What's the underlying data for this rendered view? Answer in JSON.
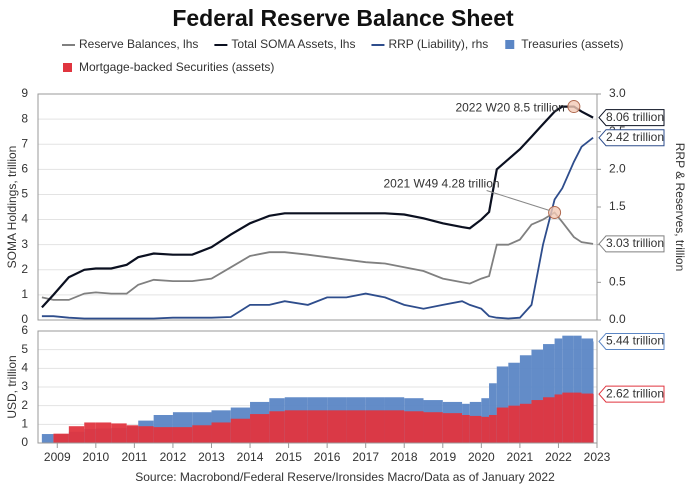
{
  "title": "Federal Reserve Balance Sheet",
  "source": "Source: Macrobond/Federal Reserve/Ironsides Macro/Data as of January 2022",
  "chart_data": [
    {
      "type": "line",
      "ylabel": "SOMA Holdings, trillion",
      "y2label": "RRP & Reserves, trillion",
      "xlim": [
        2008.5,
        2023
      ],
      "ylim": [
        0,
        9
      ],
      "yticks": [
        0,
        1,
        2,
        3,
        4,
        5,
        6,
        7,
        8,
        9
      ],
      "y2lim": [
        0,
        3.0
      ],
      "y2ticks": [
        {
          "value": 0,
          "label": "0.0"
        },
        0.5,
        {
          "value": 1,
          "label": "1.0"
        },
        1.5,
        {
          "value": 2,
          "label": "2.0"
        },
        2.5,
        {
          "value": 3,
          "label": "3.0"
        }
      ],
      "grid": true,
      "x": [
        2008.6,
        2008.9,
        2009.3,
        2009.7,
        2010.0,
        2010.4,
        2010.8,
        2011.1,
        2011.5,
        2012.0,
        2012.5,
        2013.0,
        2013.5,
        2014.0,
        2014.5,
        2014.9,
        2015.5,
        2016.0,
        2016.5,
        2017.0,
        2017.5,
        2018.0,
        2018.5,
        2019.0,
        2019.5,
        2019.7,
        2020.0,
        2020.2,
        2020.4,
        2020.7,
        2021.0,
        2021.3,
        2021.6,
        2021.9,
        2022.1,
        2022.4,
        2022.6,
        2022.9
      ],
      "series": [
        {
          "name": "Reserve Balances, lhs",
          "color": "#808080",
          "values": [
            0.9,
            0.8,
            0.8,
            1.05,
            1.1,
            1.05,
            1.05,
            1.4,
            1.6,
            1.55,
            1.55,
            1.65,
            2.1,
            2.55,
            2.7,
            2.7,
            2.6,
            2.5,
            2.4,
            2.3,
            2.25,
            2.1,
            1.95,
            1.65,
            1.5,
            1.45,
            1.65,
            1.75,
            3.0,
            3.0,
            3.2,
            3.8,
            4.0,
            4.28,
            3.9,
            3.3,
            3.1,
            3.03
          ],
          "end_label": "3.03 trillion"
        },
        {
          "name": "Total SOMA Assets, lhs",
          "color": "#0b1020",
          "values": [
            0.5,
            1.0,
            1.7,
            2.0,
            2.05,
            2.05,
            2.2,
            2.5,
            2.65,
            2.6,
            2.6,
            2.9,
            3.4,
            3.85,
            4.15,
            4.25,
            4.25,
            4.25,
            4.25,
            4.25,
            4.25,
            4.2,
            4.05,
            3.85,
            3.7,
            3.65,
            4.0,
            4.3,
            6.0,
            6.4,
            6.8,
            7.3,
            7.8,
            8.3,
            8.5,
            8.5,
            8.3,
            8.06
          ],
          "end_label": "8.06 trillion"
        },
        {
          "name": "RRP (Liability), rhs",
          "color": "#2e4d8c",
          "axis": "y2",
          "values": [
            0.05,
            0.05,
            0.03,
            0.02,
            0.02,
            0.02,
            0.02,
            0.02,
            0.02,
            0.03,
            0.03,
            0.03,
            0.04,
            0.2,
            0.2,
            0.25,
            0.2,
            0.3,
            0.3,
            0.35,
            0.3,
            0.2,
            0.15,
            0.2,
            0.25,
            0.2,
            0.15,
            0.05,
            0.03,
            0.02,
            0.03,
            0.2,
            1.0,
            1.6,
            1.75,
            2.1,
            2.3,
            2.42
          ],
          "end_label": "2.42 trillion"
        }
      ],
      "annotations": [
        {
          "text": "2022 W20 8.5 trillion",
          "x": 2022.4,
          "y": 8.5
        },
        {
          "text": "2021 W49 4.28 trillion",
          "x": 2021.9,
          "y": 4.28
        }
      ]
    },
    {
      "type": "bar",
      "ylabel": "USD, trillion",
      "xlim": [
        2008.5,
        2023
      ],
      "xticks": [
        2009,
        2010,
        2011,
        2012,
        2013,
        2014,
        2015,
        2016,
        2017,
        2018,
        2019,
        2020,
        2021,
        2022,
        2023
      ],
      "ylim": [
        0,
        6
      ],
      "yticks": [
        0,
        1,
        2,
        3,
        4,
        5,
        6
      ],
      "grid": true,
      "x": [
        2008.6,
        2008.9,
        2009.3,
        2009.7,
        2010.0,
        2010.4,
        2010.8,
        2011.1,
        2011.5,
        2012.0,
        2012.5,
        2013.0,
        2013.5,
        2014.0,
        2014.5,
        2014.9,
        2015.5,
        2016.0,
        2016.5,
        2017.0,
        2017.5,
        2018.0,
        2018.5,
        2019.0,
        2019.5,
        2019.7,
        2020.0,
        2020.2,
        2020.4,
        2020.7,
        2021.0,
        2021.3,
        2021.6,
        2021.9,
        2022.1,
        2022.4,
        2022.6,
        2022.9
      ],
      "series": [
        {
          "name": "Treasuries (assets)",
          "color": "#5b86c5",
          "values": [
            0.48,
            0.48,
            0.6,
            0.75,
            0.78,
            0.8,
            0.9,
            1.2,
            1.5,
            1.65,
            1.65,
            1.75,
            1.9,
            2.2,
            2.4,
            2.45,
            2.45,
            2.45,
            2.45,
            2.45,
            2.45,
            2.4,
            2.3,
            2.2,
            2.1,
            2.2,
            2.4,
            3.2,
            4.1,
            4.3,
            4.7,
            5.0,
            5.3,
            5.6,
            5.75,
            5.75,
            5.6,
            5.44
          ],
          "end_label": "5.44 trillion"
        },
        {
          "name": "Mortgage-backed Securities (assets)",
          "color": "#e0353f",
          "values": [
            0,
            0.5,
            0.9,
            1.1,
            1.1,
            1.05,
            0.95,
            0.9,
            0.85,
            0.85,
            0.95,
            1.1,
            1.3,
            1.55,
            1.7,
            1.75,
            1.75,
            1.75,
            1.75,
            1.75,
            1.75,
            1.7,
            1.65,
            1.6,
            1.5,
            1.45,
            1.4,
            1.5,
            1.9,
            2.0,
            2.1,
            2.3,
            2.45,
            2.6,
            2.7,
            2.7,
            2.65,
            2.62
          ],
          "end_label": "2.62 trillion"
        }
      ]
    }
  ]
}
